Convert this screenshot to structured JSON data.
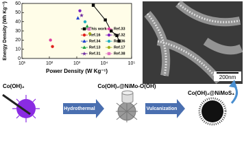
{
  "chart_data": {
    "type": "scatter",
    "xlabel": "Power Density (W Kg⁻¹)",
    "ylabel": "Energy Density (Wh Kg⁻¹)",
    "log_x": true,
    "xlim": [
      10,
      100000
    ],
    "xticks": [
      {
        "value": 10,
        "label": "10¹"
      },
      {
        "value": 100,
        "label": "10²"
      },
      {
        "value": 1000,
        "label": "10³"
      },
      {
        "value": 10000,
        "label": "10⁴"
      },
      {
        "value": 100000,
        "label": "10⁵"
      }
    ],
    "ylim": [
      0,
      60
    ],
    "yticks": [
      0,
      10,
      20,
      30,
      40,
      50,
      60
    ],
    "series": [
      {
        "name": "This work",
        "color": "#000000",
        "marker": "square",
        "line": true,
        "x": [
          4000,
          11000,
          18000,
          29000,
          35000
        ],
        "values": [
          58,
          42,
          30,
          25,
          19
        ]
      },
      {
        "name": "Ref.16",
        "color": "#e0201c",
        "marker": "circle",
        "x": [
          130
        ],
        "values": [
          13
        ]
      },
      {
        "name": "Ref.34",
        "color": "#2040d0",
        "marker": "triangle",
        "x": [
          1100
        ],
        "values": [
          44
        ]
      },
      {
        "name": "Ref.13",
        "color": "#20a040",
        "marker": "triangle",
        "x": [
          2400
        ],
        "values": [
          35
        ]
      },
      {
        "name": "Ref.31",
        "color": "#7030a0",
        "marker": "star",
        "x": [
          1500
        ],
        "values": [
          47
        ]
      },
      {
        "name": "Ref.33",
        "color": "#e040a0",
        "marker": "circle",
        "x": [
          110
        ],
        "values": [
          20
        ]
      },
      {
        "name": "Ref.32",
        "color": "#8020c0",
        "marker": "circle",
        "x": [
          1300
        ],
        "values": [
          52
        ]
      },
      {
        "name": "Ref.36",
        "color": "#20b0c0",
        "marker": "circle",
        "x": [
          2000
        ],
        "values": [
          40
        ]
      },
      {
        "name": "Ref.17",
        "color": "#a0b020",
        "marker": "circle",
        "x": [
          3000
        ],
        "values": [
          27
        ]
      },
      {
        "name": "Ref.38",
        "color": "#e070c0",
        "marker": "square",
        "x": [
          2800
        ],
        "values": [
          32
        ]
      }
    ]
  },
  "diagram": {
    "scale_bar": "200nm",
    "start": "Co(OH)₂",
    "step1": "Hydrothermal",
    "middle": "Co(OH)₂@NiMo-O(OH)",
    "step2": "Vulcanization",
    "end": "Co(OH)₂@NiMoS₄"
  }
}
